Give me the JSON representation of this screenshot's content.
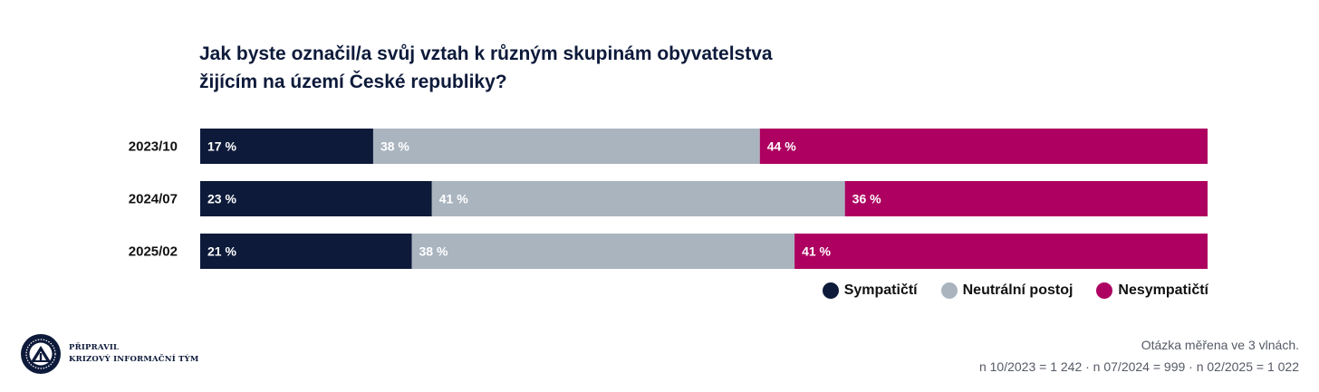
{
  "title": {
    "line1": "Jak byste označil/a svůj vztah k různým skupinám obyvatelstva",
    "line2": "žijícím na území České republiky?"
  },
  "chart_data": {
    "type": "bar",
    "orientation": "horizontal",
    "stacked": true,
    "title": "Jak byste označil/a svůj vztah k různým skupinám obyvatelstva žijícím na území České republiky?",
    "categories": [
      "2023/10",
      "2024/07",
      "2025/02"
    ],
    "value_suffix": " %",
    "series": [
      {
        "name": "Sympatičtí",
        "color": "#0d1a3a",
        "values": [
          17,
          23,
          21
        ]
      },
      {
        "name": "Neutrální postoj",
        "color": "#a9b4bf",
        "values": [
          38,
          41,
          38
        ]
      },
      {
        "name": "Nesympatičtí",
        "color": "#ad0060",
        "values": [
          44,
          36,
          41
        ]
      }
    ],
    "legend_position": "bottom-right"
  },
  "credit": {
    "line1": "PŘIPRAVIL",
    "line2": "KRIZOVÝ INFORMAČNÍ TÝM"
  },
  "note": {
    "line1": "Otázka měřena ve 3 vlnách.",
    "line2": "n 10/2023 = 1 242 · n 07/2024 = 999 · n 02/2025 = 1 022"
  },
  "logo": {
    "icon": "kit-emblem-icon"
  }
}
